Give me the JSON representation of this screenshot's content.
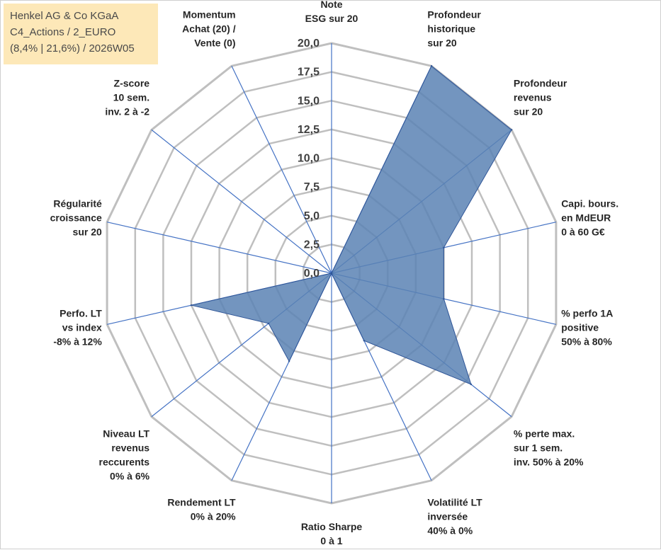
{
  "info_box": {
    "line1": "Henkel AG & Co KGaA",
    "line2": "C4_Actions / 2_EURO",
    "line3": "(8,4% | 21,6%) / 2026W05"
  },
  "colors": {
    "grid": "#bfbfbf",
    "spoke": "#4472c4",
    "fill": "#5b82b4",
    "stroke": "#2f5597",
    "info_bg": "#fde8b8"
  },
  "chart_data": {
    "type": "radar",
    "scale": {
      "min": 0,
      "max": 20,
      "step": 2.5
    },
    "ticks": [
      "0,0",
      "2,5",
      "5,0",
      "7,5",
      "10,0",
      "12,5",
      "15,0",
      "17,5",
      "20,0"
    ],
    "axes": [
      {
        "label": [
          "Note",
          "ESG sur 20"
        ],
        "value": 0
      },
      {
        "label": [
          "Profondeur",
          "historique",
          "sur 20"
        ],
        "value": 20
      },
      {
        "label": [
          "Profondeur",
          "revenus",
          "sur 20"
        ],
        "value": 20
      },
      {
        "label": [
          "Capi. bours.",
          "en MdEUR",
          "0 à 60 G€"
        ],
        "value": 10
      },
      {
        "label": [
          "% perfo 1A",
          "positive",
          "50% à 80%"
        ],
        "value": 10
      },
      {
        "label": [
          "% perte max.",
          "sur 1 sem.",
          "inv. 50% à 20%"
        ],
        "value": 15.5
      },
      {
        "label": [
          "Volatilité LT",
          "inversée",
          "40% à 0%"
        ],
        "value": 6.5
      },
      {
        "label": [
          "Ratio Sharpe",
          "0 à 1"
        ],
        "value": 0
      },
      {
        "label": [
          "Rendement LT",
          "0% à 20%"
        ],
        "value": 8.5
      },
      {
        "label": [
          "Niveau LT",
          "revenus",
          "reccurents",
          "0% à 6%"
        ],
        "value": 7
      },
      {
        "label": [
          "Perfo. LT",
          "vs index",
          "-8% à 12%"
        ],
        "value": 12.5
      },
      {
        "label": [
          "Régularité",
          "croissance",
          "sur 20"
        ],
        "value": 0
      },
      {
        "label": [
          "Z-score",
          "10 sem.",
          "inv. 2 à -2"
        ],
        "value": 0
      },
      {
        "label": [
          "Momentum",
          "Achat (20) /",
          "Vente (0)"
        ],
        "value": 0
      }
    ]
  }
}
